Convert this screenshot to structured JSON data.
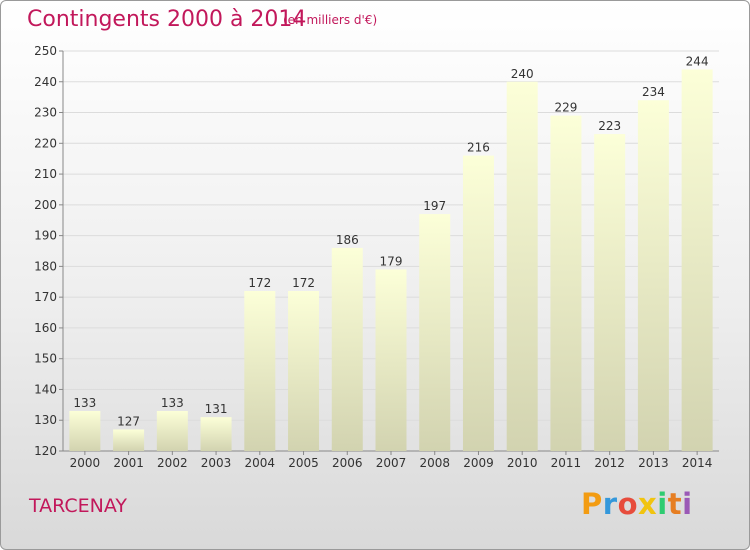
{
  "title": "Contingents 2000 à 2014",
  "subtitle": "(en milliers d'€)",
  "commune": "TARCENAY",
  "brand": {
    "letters": [
      "P",
      "r",
      "o",
      "x",
      "i",
      "t",
      "i"
    ],
    "colors": [
      "#f39c12",
      "#3498db",
      "#e74c3c",
      "#f1c40f",
      "#2ecc71",
      "#e67e22",
      "#9b59b6"
    ]
  },
  "colors": {
    "title": "#c2185b",
    "bar_top": "#fcffd8",
    "bar_bottom": "#d2d3b0",
    "grid": "#dcdcdc",
    "axis_text": "#333333"
  },
  "chart_data": {
    "type": "bar",
    "title": "Contingents 2000 à 2014",
    "subtitle": "(en milliers d'€)",
    "categories": [
      "2000",
      "2001",
      "2002",
      "2003",
      "2004",
      "2005",
      "2006",
      "2007",
      "2008",
      "2009",
      "2010",
      "2011",
      "2012",
      "2013",
      "2014"
    ],
    "values": [
      133,
      127,
      133,
      131,
      172,
      172,
      186,
      179,
      197,
      216,
      240,
      229,
      223,
      234,
      244
    ],
    "ylim": [
      120,
      250
    ],
    "yticks": [
      120,
      130,
      140,
      150,
      160,
      170,
      180,
      190,
      200,
      210,
      220,
      230,
      240,
      250
    ],
    "grid": true,
    "data_labels": true,
    "legend": "none"
  }
}
